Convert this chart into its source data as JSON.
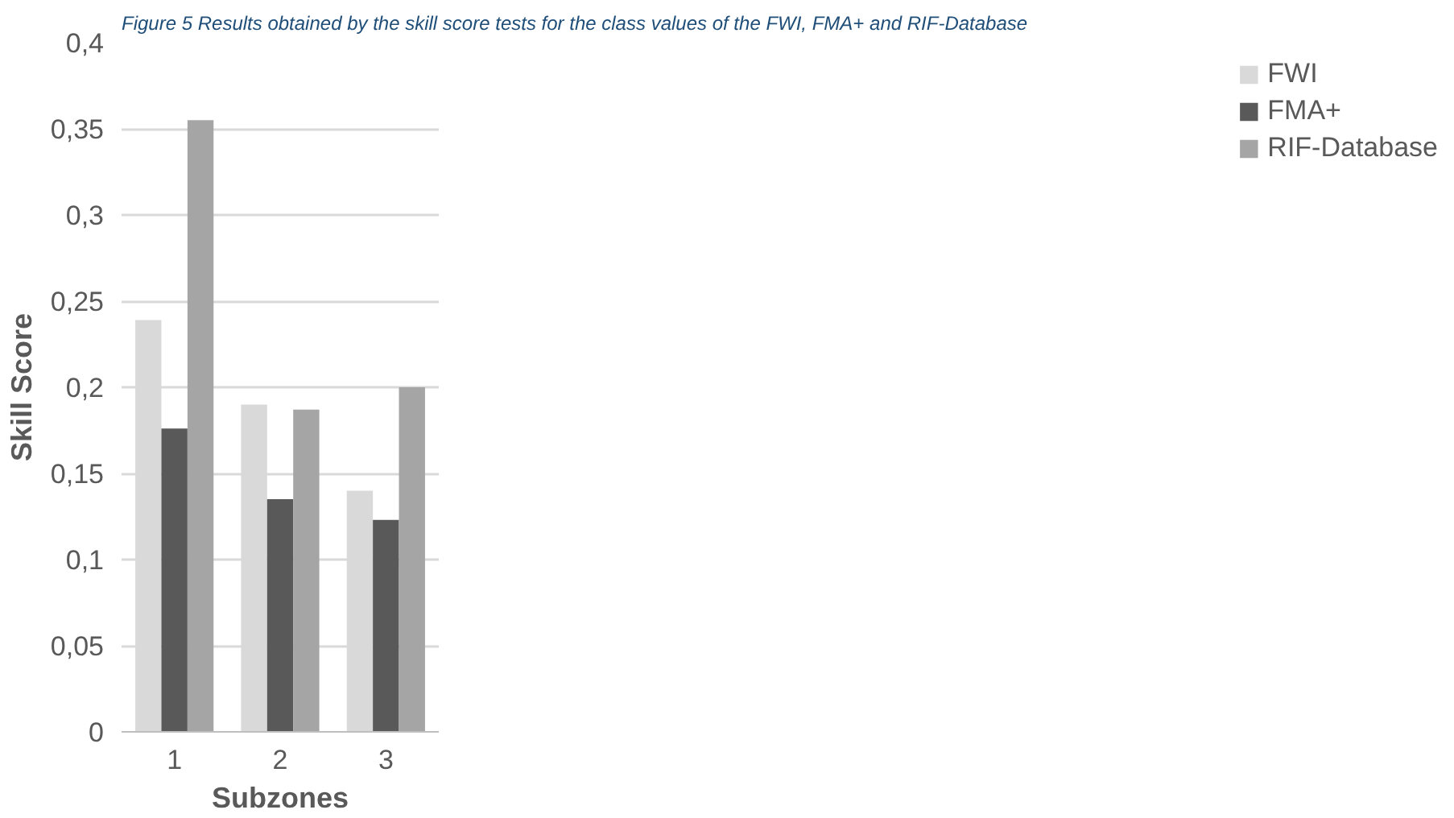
{
  "chart_data": {
    "type": "bar",
    "title": "Figure 5 Results obtained by the skill score tests for the class values of the FWI, FMA+ and RIF-Database",
    "xlabel": "Subzones",
    "ylabel": "Skill Score",
    "categories": [
      "1",
      "2",
      "3"
    ],
    "series": [
      {
        "name": "FWI",
        "color": "#d9d9d9",
        "values": [
          0.239,
          0.19,
          0.14
        ]
      },
      {
        "name": "FMA+",
        "color": "#595959",
        "values": [
          0.176,
          0.135,
          0.123
        ]
      },
      {
        "name": "RIF-Database",
        "color": "#a5a5a5",
        "values": [
          0.355,
          0.187,
          0.2
        ]
      }
    ],
    "ylim": [
      0,
      0.4
    ],
    "yticks": [
      {
        "value": 0,
        "label": "0"
      },
      {
        "value": 0.05,
        "label": "0,05"
      },
      {
        "value": 0.1,
        "label": "0,1"
      },
      {
        "value": 0.15,
        "label": "0,15"
      },
      {
        "value": 0.2,
        "label": "0,2"
      },
      {
        "value": 0.25,
        "label": "0,25"
      },
      {
        "value": 0.3,
        "label": "0,3"
      },
      {
        "value": 0.35,
        "label": "0,35"
      },
      {
        "value": 0.4,
        "label": "0,4"
      }
    ],
    "grid": "y",
    "legend": "right"
  }
}
